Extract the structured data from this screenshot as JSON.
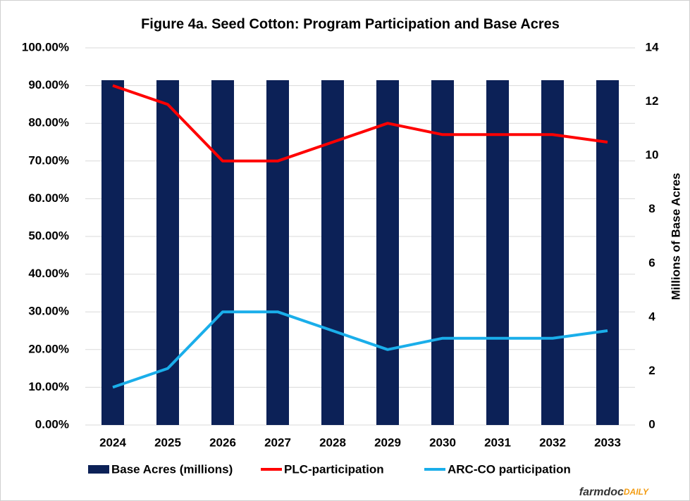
{
  "chart_data": {
    "type": "bar-line",
    "title": "Figure  4a. Seed Cotton: Program Participation and Base Acres",
    "categories": [
      "2024",
      "2025",
      "2026",
      "2027",
      "2028",
      "2029",
      "2030",
      "2031",
      "2032",
      "2033"
    ],
    "series": [
      {
        "name": "Base Acres (millions)",
        "type": "bar",
        "axis": "y2",
        "color": "#0c2157",
        "values": [
          12.8,
          12.8,
          12.8,
          12.8,
          12.8,
          12.8,
          12.8,
          12.8,
          12.8,
          12.8
        ]
      },
      {
        "name": "PLC-participation",
        "type": "line",
        "color": "#ff0000",
        "values": [
          90,
          85,
          70,
          70,
          75,
          80,
          77,
          77,
          77,
          75
        ]
      },
      {
        "name": "ARC-CO participation",
        "type": "line",
        "color": "#1aaeea",
        "values": [
          10,
          15,
          30,
          30,
          25,
          20,
          23,
          23,
          23,
          25
        ]
      }
    ],
    "ylim": [
      0,
      100
    ],
    "yticks": [
      {
        "value": 0,
        "label": "0.00%"
      },
      {
        "value": 10,
        "label": "10.00%"
      },
      {
        "value": 20,
        "label": "20.00%"
      },
      {
        "value": 30,
        "label": "30.00%"
      },
      {
        "value": 40,
        "label": "40.00%"
      },
      {
        "value": 50,
        "label": "50.00%"
      },
      {
        "value": 60,
        "label": "60.00%"
      },
      {
        "value": 70,
        "label": "70.00%"
      },
      {
        "value": 80,
        "label": "80.00%"
      },
      {
        "value": 90,
        "label": "90.00%"
      },
      {
        "value": 100,
        "label": "100.00%"
      }
    ],
    "y2lim": [
      0,
      14
    ],
    "y2ticks": [
      0,
      2,
      4,
      6,
      8,
      10,
      12,
      14
    ],
    "y2label": "Millions of Base Acres",
    "grid": true,
    "legend": "bottom"
  },
  "logo": {
    "main": "farmdoc",
    "accent": "DAILY"
  }
}
